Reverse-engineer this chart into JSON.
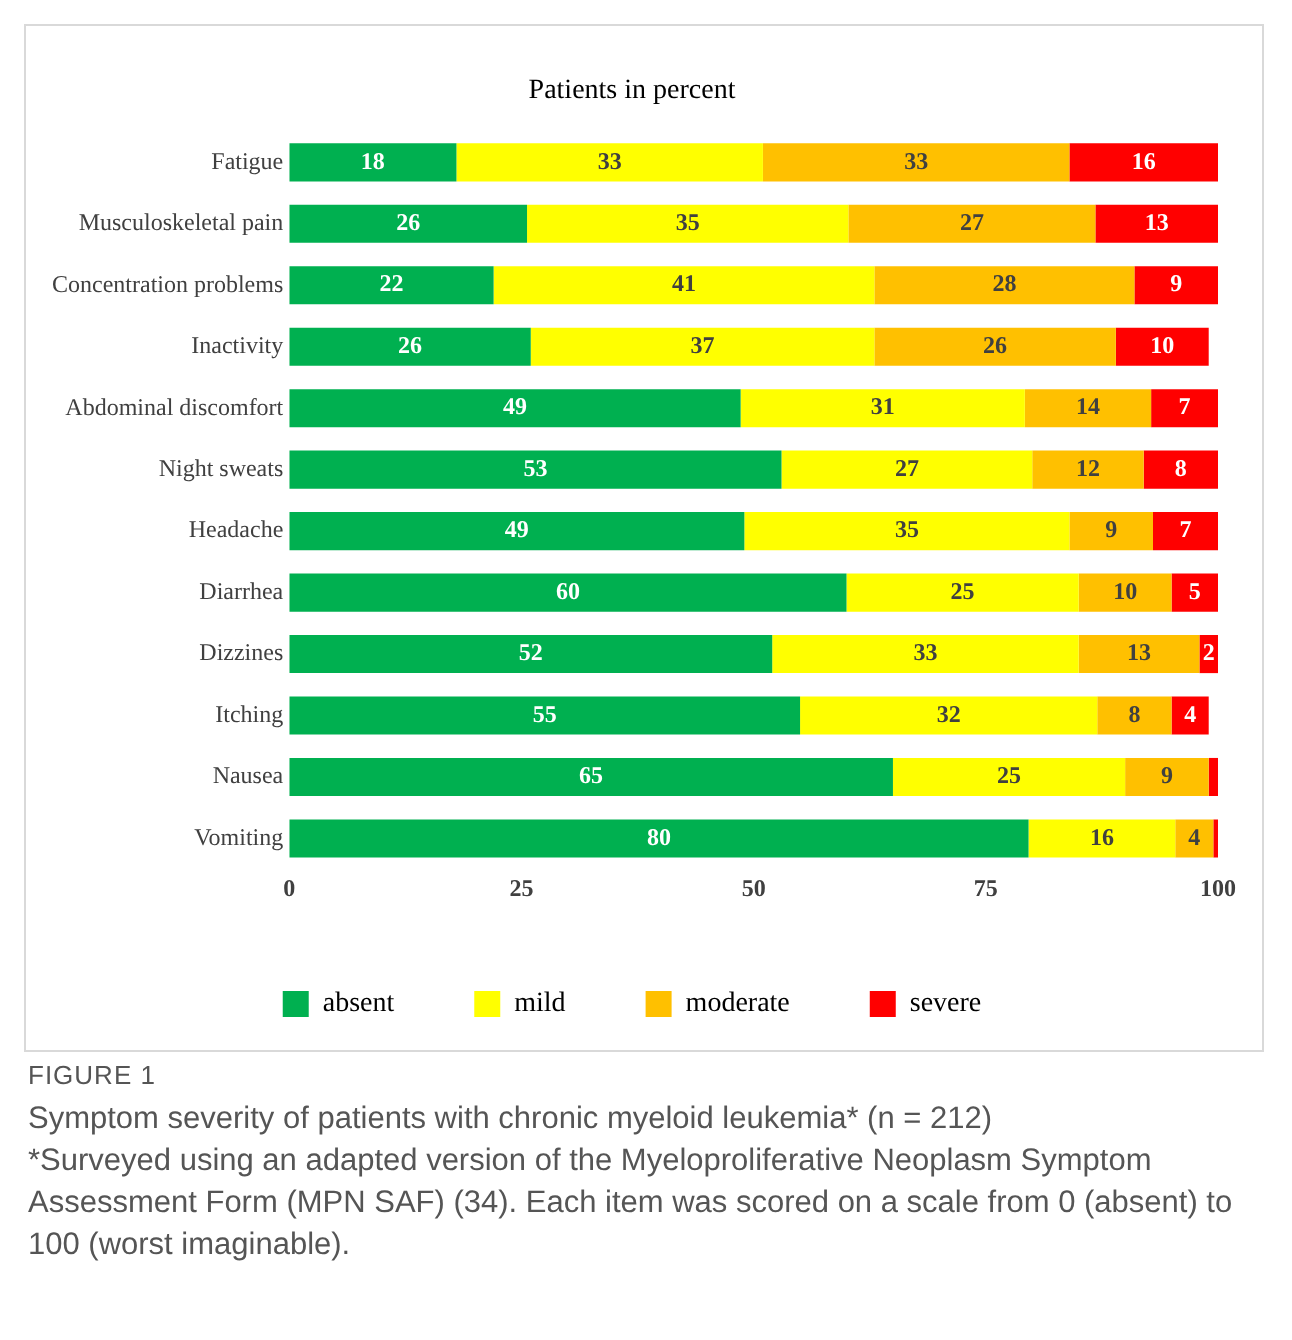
{
  "chart_data": {
    "type": "bar",
    "orientation": "horizontal",
    "stacked": true,
    "title": "Patients in percent",
    "categories": [
      "Fatigue",
      "Musculoskeletal pain",
      "Concentration problems",
      "Inactivity",
      "Abdominal discomfort",
      "Night sweats",
      "Headache",
      "Diarrhea",
      "Dizzines",
      "Itching",
      "Nausea",
      "Vomiting"
    ],
    "series": [
      {
        "name": "absent",
        "color": "#00b050",
        "values": [
          18,
          25.6,
          22,
          26,
          48.6,
          53,
          49,
          60,
          52,
          55,
          65,
          79.6
        ],
        "value_labels": [
          "18",
          "26",
          "22",
          "26",
          "49",
          "53",
          "49",
          "60",
          "52",
          "55",
          "65",
          "80"
        ]
      },
      {
        "name": "mild",
        "color": "#ffff00",
        "values": [
          33,
          34.6,
          41,
          37,
          30.6,
          27,
          35,
          25,
          33,
          32,
          25,
          15.8
        ],
        "value_labels": [
          "33",
          "35",
          "41",
          "37",
          "31",
          "27",
          "35",
          "25",
          "33",
          "32",
          "25",
          "16"
        ]
      },
      {
        "name": "moderate",
        "color": "#ffc000",
        "values": [
          33,
          26.6,
          28,
          26,
          13.6,
          12,
          9,
          10,
          13,
          8,
          9,
          4.1
        ],
        "value_labels": [
          "33",
          "27",
          "28",
          "26",
          "14",
          "12",
          "9",
          "10",
          "13",
          "8",
          "9",
          "4"
        ]
      },
      {
        "name": "severe",
        "color": "#ff0000",
        "values": [
          16,
          13.2,
          9,
          10,
          7.2,
          8,
          7,
          5,
          2,
          4,
          1,
          0.5
        ],
        "value_labels": [
          "16",
          "13",
          "9",
          "10",
          "7",
          "8",
          "7",
          "5",
          "2",
          "4",
          null,
          null
        ]
      }
    ],
    "xlim": [
      0,
      100
    ],
    "xticks": [
      0,
      25,
      50,
      75,
      100
    ],
    "grid": false,
    "legend": "bottom",
    "annotations": [
      "FIGURE 1",
      "Symptom severity of patients with chronic myeloid leukemia* (n = 212)",
      "*Surveyed using an adapted version of the Myeloproliferative Neoplasm Symptom Assessment Form (MPN SAF) (34). Each item was scored on a scale from 0 (absent) to 100 (worst imaginable)."
    ]
  }
}
